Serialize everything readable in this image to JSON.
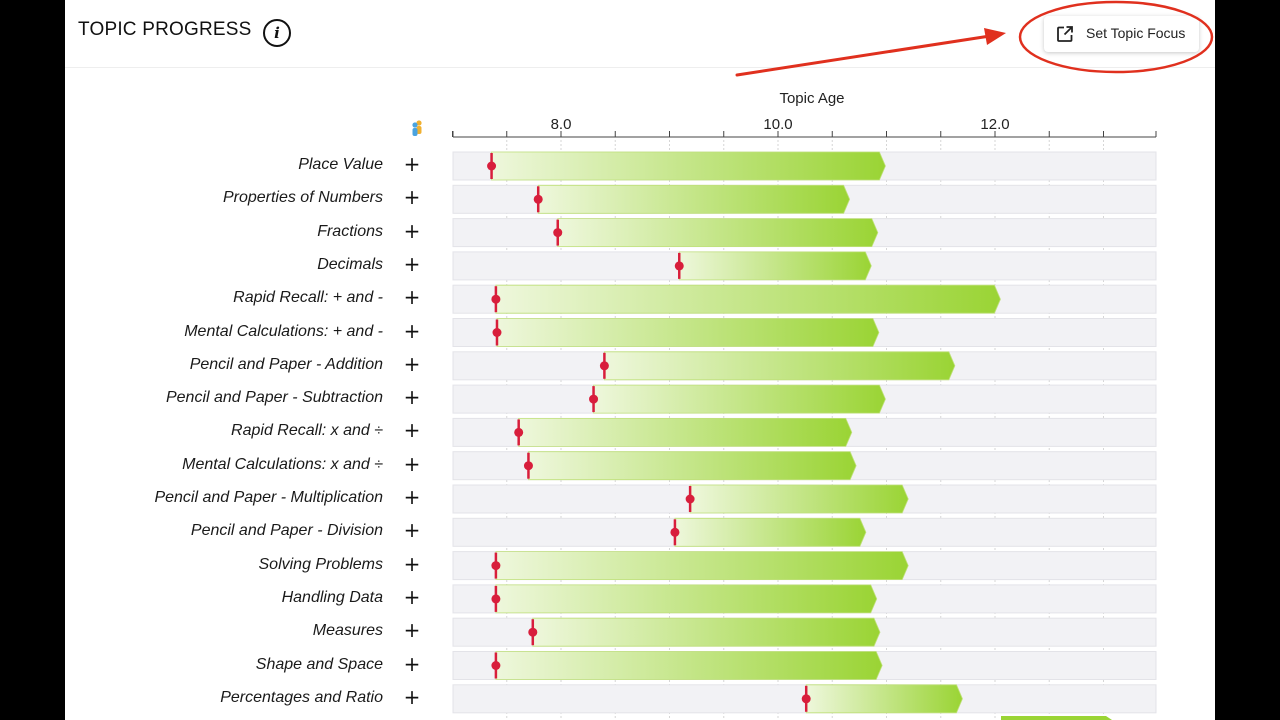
{
  "header": {
    "title": "TOPIC PROGRESS",
    "info_label": "i",
    "focus_button_label": "Set Topic Focus"
  },
  "chart": {
    "axis_title": "Topic Age",
    "ticks": [
      "8.0",
      "10.0",
      "12.0"
    ]
  },
  "chart_data": {
    "type": "bar",
    "x_axis_label": "Topic Age",
    "tick_values": [
      8.0,
      10.0,
      12.0
    ],
    "xlim": [
      7.0,
      13.5
    ],
    "colors": {
      "bar_start": "#eef7dc",
      "bar_end": "#9ad434",
      "track": "#f2f2f5",
      "marker": "#d81e3c",
      "annotation": "#e0301e"
    },
    "topics": [
      {
        "label": "Place Value",
        "start": 7.36,
        "end": 10.99
      },
      {
        "label": "Properties of Numbers",
        "start": 7.79,
        "end": 10.66
      },
      {
        "label": "Fractions",
        "start": 7.97,
        "end": 10.92
      },
      {
        "label": "Decimals",
        "start": 9.09,
        "end": 10.86
      },
      {
        "label": "Rapid Recall: + and -",
        "start": 7.4,
        "end": 12.05
      },
      {
        "label": "Mental Calculations: + and -",
        "start": 7.41,
        "end": 10.93
      },
      {
        "label": "Pencil and Paper - Addition",
        "start": 8.4,
        "end": 11.63
      },
      {
        "label": "Pencil and Paper - Subtraction",
        "start": 8.3,
        "end": 10.99
      },
      {
        "label": "Rapid Recall: x and ÷",
        "start": 7.61,
        "end": 10.68
      },
      {
        "label": "Mental Calculations: x and ÷",
        "start": 7.7,
        "end": 10.72
      },
      {
        "label": "Pencil and Paper - Multiplication",
        "start": 9.19,
        "end": 11.2
      },
      {
        "label": "Pencil and Paper - Division",
        "start": 9.05,
        "end": 10.81
      },
      {
        "label": "Solving Problems",
        "start": 7.4,
        "end": 11.2
      },
      {
        "label": "Handling Data",
        "start": 7.4,
        "end": 10.91
      },
      {
        "label": "Measures",
        "start": 7.74,
        "end": 10.94
      },
      {
        "label": "Shape and Space",
        "start": 7.4,
        "end": 10.96
      },
      {
        "label": "Percentages and Ratio",
        "start": 10.26,
        "end": 11.7
      }
    ]
  }
}
